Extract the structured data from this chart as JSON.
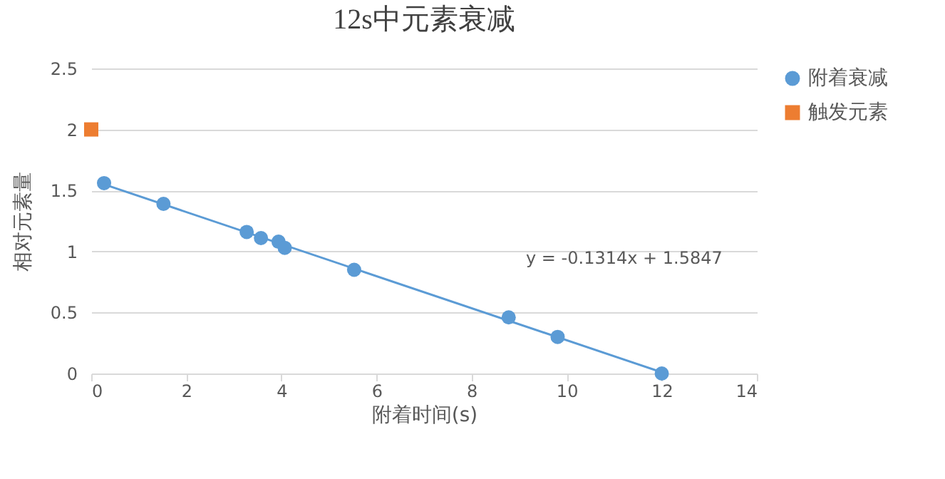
{
  "chart_data": {
    "type": "scatter",
    "title": "12s中元素衰减",
    "xlabel": "附着时间(s)",
    "ylabel": "相对元素量",
    "xlim": [
      0,
      14
    ],
    "xticks": [
      0,
      2,
      4,
      6,
      8,
      10,
      12,
      14
    ],
    "ylim": [
      0,
      2.5
    ],
    "yticks": [
      0,
      0.5,
      1,
      1.5,
      2,
      2.5
    ],
    "grid": "y",
    "legend": "right",
    "series": [
      {
        "name": "附着衰减",
        "marker": "circle",
        "color": "#5b9bd5",
        "x": [
          0.27,
          1.52,
          3.27,
          3.57,
          3.94,
          4.07,
          5.53,
          8.78,
          9.81,
          12.0
        ],
        "values": [
          1.56,
          1.39,
          1.16,
          1.11,
          1.08,
          1.03,
          0.85,
          0.46,
          0.3,
          0.0
        ]
      },
      {
        "name": "触发元素",
        "marker": "square",
        "color": "#ed7d31",
        "x": [
          0
        ],
        "values": [
          2
        ]
      },
      {
        "type": "line",
        "color": "#5b9bd5",
        "x": [
          0.27,
          12
        ],
        "values": [
          1.55,
          0.01
        ]
      }
    ],
    "annotations": [
      "y = -0.1314x + 1.5847"
    ]
  }
}
